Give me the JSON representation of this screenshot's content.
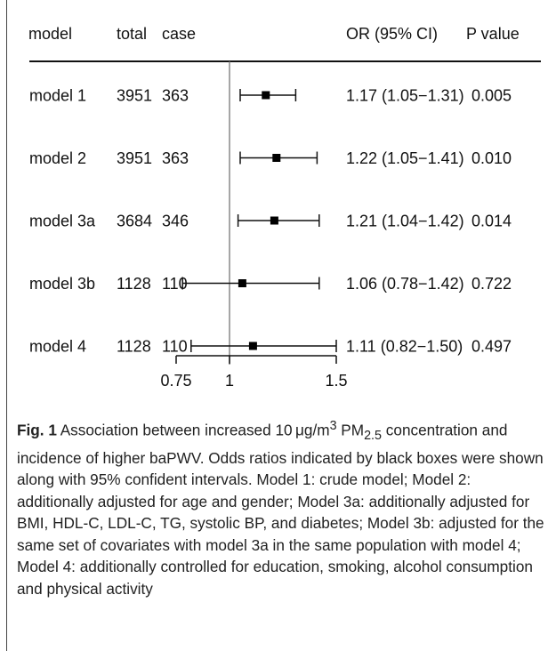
{
  "chart_data": {
    "type": "forest",
    "columns": [
      "model",
      "total",
      "case",
      "OR (95% CI)",
      "P value"
    ],
    "rows": [
      {
        "model": "model 1",
        "total": "3951",
        "case": "363",
        "or": 1.17,
        "lo": 1.05,
        "hi": 1.31,
        "or_text": "1.17 (1.05−1.31)",
        "p": "0.005"
      },
      {
        "model": "model 2",
        "total": "3951",
        "case": "363",
        "or": 1.22,
        "lo": 1.05,
        "hi": 1.41,
        "or_text": "1.22 (1.05−1.41)",
        "p": "0.010"
      },
      {
        "model": "model 3a",
        "total": "3684",
        "case": "346",
        "or": 1.21,
        "lo": 1.04,
        "hi": 1.42,
        "or_text": "1.21 (1.04−1.42)",
        "p": "0.014"
      },
      {
        "model": "model 3b",
        "total": "1128",
        "case": "110",
        "or": 1.06,
        "lo": 0.78,
        "hi": 1.42,
        "or_text": "1.06 (0.78−1.42)",
        "p": "0.722"
      },
      {
        "model": "model 4",
        "total": "1128",
        "case": "110",
        "or": 1.11,
        "lo": 0.82,
        "hi": 1.5,
        "or_text": "1.11 (0.82−1.50)",
        "p": "0.497"
      }
    ],
    "x_ticks": [
      0.75,
      1,
      1.5
    ],
    "x_tick_labels": [
      "0.75",
      "1",
      "1.5"
    ],
    "xlim": [
      0.75,
      1.5
    ],
    "reference_value": 1,
    "marker_color": "#000000",
    "grid": false
  },
  "caption": {
    "label": "Fig. 1",
    "part1": " Association between increased 10 μg/m",
    "superscript": "3",
    "part2": " PM",
    "subscript": "2.5",
    "part3": " concentration and incidence of higher baPWV. Odds ratios indicated by black boxes were shown along with 95% confident intervals. Model 1: crude model; Model 2: additionally adjusted for age and gender; Model 3a: additionally adjusted for BMI, HDL-C, LDL-C, TG, systolic BP, and diabetes; Model 3b: adjusted for the same set of covariates with model 3a in the same population with model 4; Model 4: additionally controlled for education, smoking, alcohol consumption and physical activity"
  }
}
